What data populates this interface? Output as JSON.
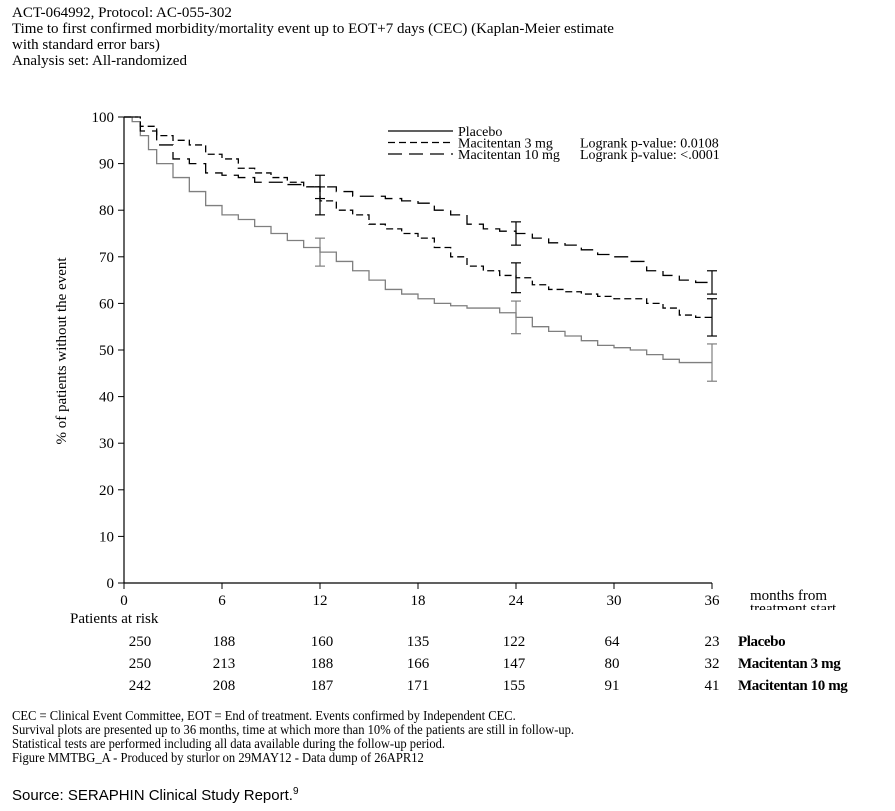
{
  "header": {
    "line1": "ACT-064992, Protocol: AC-055-302",
    "line2": "Time to first confirmed morbidity/mortality event up to EOT+7 days (CEC) (Kaplan-Meier estimate",
    "line3": "with standard error bars)",
    "line4": "Analysis set: All-randomized"
  },
  "chart_data": {
    "type": "line",
    "ylabel": "% of patients without the event",
    "xlabel": "months from treatment start",
    "xlabel_line1": "months from",
    "xlabel_line2": "treatment start",
    "xlim": [
      0,
      36
    ],
    "ylim": [
      0,
      100
    ],
    "x_ticks": [
      "0",
      "6",
      "12",
      "18",
      "24",
      "30",
      "36"
    ],
    "y_ticks": [
      "0",
      "10",
      "20",
      "30",
      "40",
      "50",
      "60",
      "70",
      "80",
      "90",
      "100"
    ],
    "grid": false,
    "legend_position": "top-right",
    "legend": [
      {
        "label": "Placebo",
        "pvalue_text": ""
      },
      {
        "label": "Macitentan 3 mg",
        "pvalue_text": "Logrank p-value: 0.0108"
      },
      {
        "label": "Macitentan 10 mg",
        "pvalue_text": "Logrank p-value: <.0001"
      }
    ],
    "series": [
      {
        "name": "Placebo",
        "color": "#7f7f7f",
        "dash": "solid",
        "points": [
          [
            0,
            100
          ],
          [
            0.5,
            99
          ],
          [
            1,
            96
          ],
          [
            1.5,
            93
          ],
          [
            2,
            90
          ],
          [
            3,
            87
          ],
          [
            4,
            84
          ],
          [
            5,
            81
          ],
          [
            6,
            79
          ],
          [
            7,
            78
          ],
          [
            8,
            76.5
          ],
          [
            9,
            75
          ],
          [
            10,
            73.5
          ],
          [
            11,
            72
          ],
          [
            12,
            71
          ],
          [
            13,
            69
          ],
          [
            14,
            67
          ],
          [
            15,
            65
          ],
          [
            16,
            63
          ],
          [
            17,
            62
          ],
          [
            18,
            61
          ],
          [
            19,
            60
          ],
          [
            20,
            59.5
          ],
          [
            21,
            59
          ],
          [
            22,
            59
          ],
          [
            23,
            58
          ],
          [
            24,
            57
          ],
          [
            25,
            55
          ],
          [
            26,
            54
          ],
          [
            27,
            53
          ],
          [
            28,
            52
          ],
          [
            29,
            51
          ],
          [
            30,
            50.5
          ],
          [
            31,
            50
          ],
          [
            32,
            49
          ],
          [
            33,
            48
          ],
          [
            34,
            47.3
          ],
          [
            35,
            47.3
          ],
          [
            36,
            47.3
          ]
        ],
        "error_bars": [
          [
            12,
            71,
            3
          ],
          [
            24,
            57,
            3.5
          ],
          [
            36,
            47.3,
            4
          ]
        ]
      },
      {
        "name": "Macitentan 3 mg",
        "color": "#000000",
        "dash": "short",
        "points": [
          [
            0,
            100
          ],
          [
            1,
            98
          ],
          [
            2,
            96
          ],
          [
            3,
            95
          ],
          [
            4,
            94
          ],
          [
            5,
            92
          ],
          [
            6,
            91
          ],
          [
            7,
            89
          ],
          [
            8,
            88
          ],
          [
            9,
            87
          ],
          [
            10,
            86
          ],
          [
            11,
            85
          ],
          [
            12,
            82
          ],
          [
            13,
            80
          ],
          [
            14,
            79
          ],
          [
            15,
            77
          ],
          [
            16,
            76
          ],
          [
            17,
            75
          ],
          [
            18,
            74
          ],
          [
            19,
            72
          ],
          [
            20,
            70
          ],
          [
            21,
            68
          ],
          [
            22,
            67
          ],
          [
            23,
            66
          ],
          [
            24,
            65.5
          ],
          [
            25,
            64
          ],
          [
            26,
            63
          ],
          [
            27,
            62.5
          ],
          [
            28,
            62
          ],
          [
            29,
            61.5
          ],
          [
            30,
            61
          ],
          [
            31,
            61
          ],
          [
            32,
            60
          ],
          [
            33,
            59
          ],
          [
            34,
            57.5
          ],
          [
            35,
            57
          ],
          [
            36,
            57
          ]
        ],
        "error_bars": [
          [
            12,
            82,
            3
          ],
          [
            24,
            65.5,
            3.2
          ],
          [
            36,
            57,
            4
          ]
        ]
      },
      {
        "name": "Macitentan 10 mg",
        "color": "#000000",
        "dash": "long",
        "points": [
          [
            0,
            100
          ],
          [
            1,
            97
          ],
          [
            2,
            94
          ],
          [
            3,
            91
          ],
          [
            4,
            90
          ],
          [
            5,
            88
          ],
          [
            6,
            87.5
          ],
          [
            7,
            87
          ],
          [
            8,
            86
          ],
          [
            9,
            86
          ],
          [
            10,
            85.5
          ],
          [
            11,
            85
          ],
          [
            12,
            85
          ],
          [
            13,
            84
          ],
          [
            14,
            83
          ],
          [
            15,
            83
          ],
          [
            16,
            82.5
          ],
          [
            17,
            82
          ],
          [
            18,
            81.5
          ],
          [
            19,
            80
          ],
          [
            20,
            79
          ],
          [
            21,
            77
          ],
          [
            22,
            76
          ],
          [
            23,
            75.5
          ],
          [
            24,
            75
          ],
          [
            25,
            74
          ],
          [
            26,
            73
          ],
          [
            27,
            72.5
          ],
          [
            28,
            71.5
          ],
          [
            29,
            70.5
          ],
          [
            30,
            70
          ],
          [
            31,
            69
          ],
          [
            32,
            67
          ],
          [
            33,
            66
          ],
          [
            34,
            65
          ],
          [
            35,
            64.5
          ],
          [
            36,
            64.5
          ]
        ],
        "error_bars": [
          [
            12,
            85,
            2.5
          ],
          [
            24,
            75,
            2.5
          ],
          [
            36,
            64.5,
            2.5
          ]
        ]
      }
    ]
  },
  "risk_table": {
    "header": "Patients at risk",
    "rows": [
      {
        "label": "Placebo",
        "values": [
          "250",
          "188",
          "160",
          "135",
          "122",
          "64",
          "23"
        ]
      },
      {
        "label": "Macitentan  3 mg",
        "values": [
          "250",
          "213",
          "188",
          "166",
          "147",
          "80",
          "32"
        ]
      },
      {
        "label": "Macitentan  10 mg",
        "values": [
          "242",
          "208",
          "187",
          "171",
          "155",
          "91",
          "41"
        ]
      }
    ]
  },
  "footnotes": {
    "line1": "CEC = Clinical Event Committee, EOT = End of treatment. Events confirmed by Independent CEC.",
    "line2": "Survival plots are presented up to 36 months, time at which more than 10% of the patients are still in follow-up.",
    "line3": "Statistical tests are performed including all data available during the follow-up period.",
    "line4": "Figure MMTBG_A - Produced by sturlor on 29MAY12 - Data dump of 26APR12"
  },
  "source": {
    "text": "Source: SERAPHIN Clinical Study Report.",
    "ref": "9"
  }
}
